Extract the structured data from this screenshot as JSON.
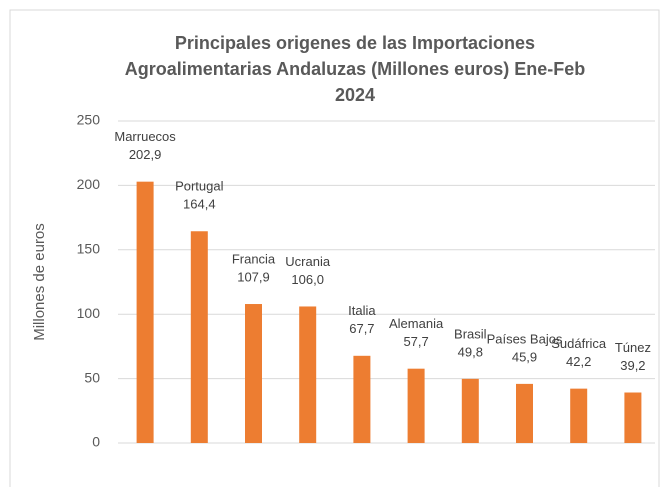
{
  "chart_data": {
    "type": "bar",
    "title": "Principales origenes de las Importaciones Agroalimentarias Andaluzas (Millones euros) Ene-Feb 2024",
    "y_label": "Millones de euros",
    "categories": [
      "Marruecos",
      "Portugal",
      "Francia",
      "Ucrania",
      "Italia",
      "Alemania",
      "Brasil",
      "Países Bajos",
      "Sudáfrica",
      "Túnez"
    ],
    "values": [
      202.9,
      164.4,
      107.9,
      106.0,
      67.7,
      57.7,
      49.8,
      45.9,
      42.2,
      39.2
    ],
    "value_labels": [
      "202,9",
      "164,4",
      "107,9",
      "106,0",
      "67,7",
      "57,7",
      "49,8",
      "45,9",
      "42,2",
      "39,2"
    ],
    "color": "#ED7D31",
    "ylim": [
      0,
      250
    ],
    "yticks": [
      0,
      50,
      100,
      150,
      200,
      250
    ],
    "grid": true
  }
}
